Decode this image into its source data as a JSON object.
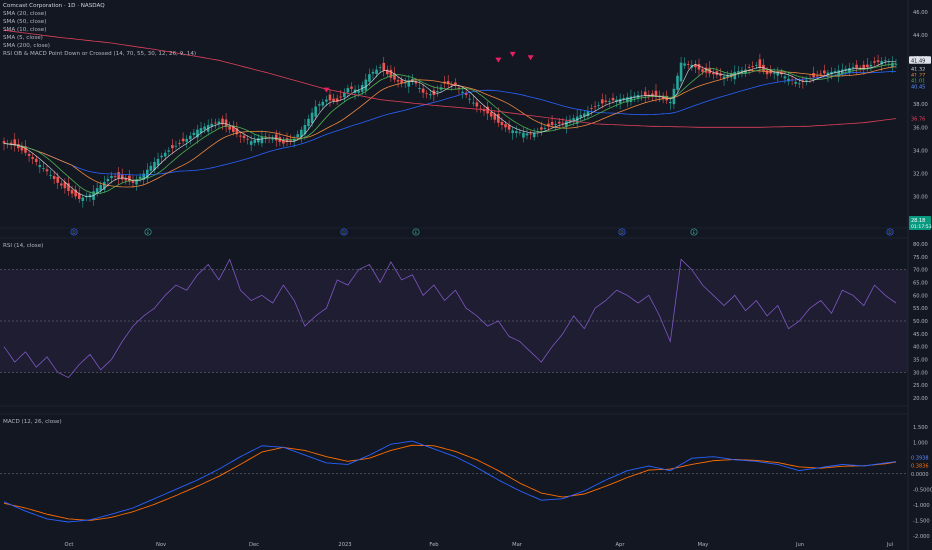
{
  "header": {
    "title": "Comcast Corporation · 1D · NASDAQ",
    "indicators": [
      "SMA (20, close)",
      "SMA (50, close)",
      "SMA (10, close)",
      "SMA (5, close)",
      "SMA (200, close)",
      "RSI OB & MACD Point Down or Crossed (14, 70, 55, 30, 12, 26, 9, 14)"
    ]
  },
  "rsi_pane": {
    "label": "RSI (14, close)"
  },
  "macd_pane": {
    "label": "MACD (12, 26, close)"
  },
  "colors": {
    "bg": "#131722",
    "up": "#26a69a",
    "down": "#ef5350",
    "sma20": "#f0883e",
    "sma50": "#2962ff",
    "sma10": "#4caf50",
    "sma5": "#e0e0e0",
    "sma200": "#e0405a",
    "rsi": "#7e57c2",
    "macd": "#2962ff",
    "signal": "#ff6d00",
    "marker": "#e91e63"
  },
  "chart_data": [
    {
      "type": "candlestick",
      "title": "Comcast Corporation · 1D · NASDAQ",
      "x_ticks": [
        "Oct",
        "Nov",
        "Dec",
        "2023",
        "Feb",
        "Mar",
        "Apr",
        "May",
        "Jun",
        "Jul"
      ],
      "y_ticks": [
        "46.00",
        "44.00",
        "42.00",
        "40.00",
        "38.00",
        "36.00",
        "34.00",
        "32.00",
        "30.00"
      ],
      "ylim": [
        28.5,
        46.5
      ],
      "price_labels": [
        {
          "text": "41.49",
          "kind": "last"
        },
        {
          "text": "41.32",
          "series": "SMA (5, close)"
        },
        {
          "text": "41.27",
          "series": "SMA (20, close)"
        },
        {
          "text": "41.01",
          "series": "SMA (10, close)"
        },
        {
          "text": "40.45",
          "series": "SMA (50, close)"
        },
        {
          "text": "36.76",
          "series": "SMA (200, close)"
        },
        {
          "text": "28.18",
          "kind": "info"
        },
        {
          "text": "01:17:53",
          "kind": "countdown"
        }
      ],
      "event_markers": [
        "D",
        "E",
        "D",
        "E",
        "D",
        "E",
        "D"
      ],
      "close_path": [
        [
          0,
          34.6
        ],
        [
          3,
          34.4
        ],
        [
          6,
          33.8
        ],
        [
          9,
          33.0
        ],
        [
          12,
          32.2
        ],
        [
          15,
          31.2
        ],
        [
          18,
          30.5
        ],
        [
          21,
          29.8
        ],
        [
          24,
          30.2
        ],
        [
          27,
          31.0
        ],
        [
          30,
          31.8
        ],
        [
          33,
          31.5
        ],
        [
          36,
          31.2
        ],
        [
          39,
          32.0
        ],
        [
          42,
          33.0
        ],
        [
          45,
          33.8
        ],
        [
          48,
          34.4
        ],
        [
          51,
          35.0
        ],
        [
          54,
          35.8
        ],
        [
          57,
          36.2
        ],
        [
          60,
          36.5
        ],
        [
          63,
          35.8
        ],
        [
          66,
          35.2
        ],
        [
          69,
          34.8
        ],
        [
          72,
          35.2
        ],
        [
          75,
          35.0
        ],
        [
          78,
          34.6
        ],
        [
          81,
          35.0
        ],
        [
          84,
          36.2
        ],
        [
          87,
          37.8
        ],
        [
          90,
          38.4
        ],
        [
          93,
          38.2
        ],
        [
          96,
          39.4
        ],
        [
          99,
          39.2
        ],
        [
          102,
          40.6
        ],
        [
          105,
          41.2
        ],
        [
          108,
          40.3
        ],
        [
          111,
          39.8
        ],
        [
          114,
          40.2
        ],
        [
          117,
          39.0
        ],
        [
          120,
          38.8
        ],
        [
          123,
          39.8
        ],
        [
          126,
          39.6
        ],
        [
          129,
          38.8
        ],
        [
          132,
          37.8
        ],
        [
          135,
          37.2
        ],
        [
          138,
          36.4
        ],
        [
          141,
          35.8
        ],
        [
          144,
          35.6
        ],
        [
          147,
          35.4
        ],
        [
          150,
          35.8
        ],
        [
          153,
          36.2
        ],
        [
          156,
          36.4
        ],
        [
          159,
          36.8
        ],
        [
          162,
          37.2
        ],
        [
          165,
          37.8
        ],
        [
          168,
          38.2
        ],
        [
          171,
          38.4
        ],
        [
          174,
          38.6
        ],
        [
          177,
          38.8
        ],
        [
          180,
          38.7
        ],
        [
          183,
          38.6
        ],
        [
          186,
          38.2
        ],
        [
          189,
          41.6
        ],
        [
          192,
          41.4
        ],
        [
          195,
          40.8
        ],
        [
          198,
          40.6
        ],
        [
          201,
          40.4
        ],
        [
          204,
          40.8
        ],
        [
          207,
          41.0
        ],
        [
          210,
          41.4
        ],
        [
          213,
          40.6
        ],
        [
          216,
          40.8
        ],
        [
          219,
          40.2
        ],
        [
          222,
          39.8
        ],
        [
          225,
          40.2
        ],
        [
          228,
          40.6
        ],
        [
          231,
          40.8
        ],
        [
          234,
          41.0
        ],
        [
          237,
          41.2
        ],
        [
          240,
          41.0
        ],
        [
          243,
          41.6
        ],
        [
          246,
          41.8
        ],
        [
          249,
          41.49
        ]
      ],
      "sma200_path": [
        [
          0,
          44.4
        ],
        [
          15,
          43.8
        ],
        [
          30,
          43.3
        ],
        [
          45,
          42.6
        ],
        [
          60,
          41.8
        ],
        [
          75,
          40.6
        ],
        [
          90,
          39.3
        ],
        [
          105,
          38.4
        ],
        [
          120,
          37.9
        ],
        [
          135,
          37.5
        ],
        [
          150,
          36.9
        ],
        [
          165,
          36.3
        ],
        [
          180,
          36.1
        ],
        [
          195,
          36.0
        ],
        [
          210,
          36.0
        ],
        [
          225,
          36.1
        ],
        [
          240,
          36.4
        ],
        [
          249,
          36.76
        ]
      ]
    },
    {
      "type": "line",
      "title": "RSI (14, close)",
      "y_ticks": [
        "80.00",
        "75.00",
        "70.00",
        "65.00",
        "60.00",
        "55.00",
        "50.00",
        "45.00",
        "40.00",
        "35.00",
        "30.00",
        "25.00",
        "20.00"
      ],
      "ylim": [
        20,
        80
      ],
      "band": [
        30,
        70
      ],
      "midline": 50,
      "series": [
        {
          "name": "RSI (14, close)",
          "values": [
            [
              0,
              40
            ],
            [
              3,
              34
            ],
            [
              6,
              38
            ],
            [
              9,
              32
            ],
            [
              12,
              36
            ],
            [
              15,
              30
            ],
            [
              18,
              28
            ],
            [
              21,
              33
            ],
            [
              24,
              37
            ],
            [
              27,
              31
            ],
            [
              30,
              35
            ],
            [
              33,
              42
            ],
            [
              36,
              48
            ],
            [
              39,
              52
            ],
            [
              42,
              55
            ],
            [
              45,
              60
            ],
            [
              48,
              64
            ],
            [
              51,
              62
            ],
            [
              54,
              68
            ],
            [
              57,
              72
            ],
            [
              60,
              66
            ],
            [
              63,
              74
            ],
            [
              66,
              62
            ],
            [
              69,
              58
            ],
            [
              72,
              60
            ],
            [
              75,
              57
            ],
            [
              78,
              64
            ],
            [
              81,
              58
            ],
            [
              84,
              48
            ],
            [
              87,
              52
            ],
            [
              90,
              55
            ],
            [
              93,
              66
            ],
            [
              96,
              64
            ],
            [
              99,
              70
            ],
            [
              102,
              72
            ],
            [
              105,
              65
            ],
            [
              108,
              73
            ],
            [
              111,
              66
            ],
            [
              114,
              68
            ],
            [
              117,
              60
            ],
            [
              120,
              64
            ],
            [
              123,
              58
            ],
            [
              126,
              62
            ],
            [
              129,
              55
            ],
            [
              132,
              52
            ],
            [
              135,
              48
            ],
            [
              138,
              50
            ],
            [
              141,
              44
            ],
            [
              144,
              42
            ],
            [
              147,
              38
            ],
            [
              150,
              34
            ],
            [
              153,
              40
            ],
            [
              156,
              45
            ],
            [
              159,
              52
            ],
            [
              162,
              47
            ],
            [
              165,
              55
            ],
            [
              168,
              58
            ],
            [
              171,
              62
            ],
            [
              174,
              60
            ],
            [
              177,
              57
            ],
            [
              180,
              60
            ],
            [
              183,
              52
            ],
            [
              186,
              42
            ],
            [
              189,
              74
            ],
            [
              192,
              70
            ],
            [
              195,
              64
            ],
            [
              198,
              60
            ],
            [
              201,
              56
            ],
            [
              204,
              60
            ],
            [
              207,
              54
            ],
            [
              210,
              58
            ],
            [
              213,
              52
            ],
            [
              216,
              56
            ],
            [
              219,
              47
            ],
            [
              222,
              50
            ],
            [
              225,
              55
            ],
            [
              228,
              58
            ],
            [
              231,
              53
            ],
            [
              234,
              62
            ],
            [
              237,
              60
            ],
            [
              240,
              56
            ],
            [
              243,
              64
            ],
            [
              246,
              60
            ],
            [
              249,
              57
            ]
          ]
        }
      ]
    },
    {
      "type": "line",
      "title": "MACD (12, 26, close)",
      "y_ticks": [
        "1.500",
        "1.000",
        "0.5000",
        "0.0000",
        "-0.5000",
        "-1.000",
        "-1.500",
        "-2.000"
      ],
      "ylim": [
        -2.0,
        1.6
      ],
      "value_labels": [
        "0.3938",
        "0.3836",
        "0.0000"
      ],
      "series": [
        {
          "name": "MACD",
          "values": [
            [
              0,
              -0.9
            ],
            [
              6,
              -1.2
            ],
            [
              12,
              -1.45
            ],
            [
              18,
              -1.55
            ],
            [
              24,
              -1.48
            ],
            [
              30,
              -1.3
            ],
            [
              36,
              -1.1
            ],
            [
              42,
              -0.8
            ],
            [
              48,
              -0.5
            ],
            [
              54,
              -0.2
            ],
            [
              60,
              0.15
            ],
            [
              66,
              0.55
            ],
            [
              72,
              0.9
            ],
            [
              78,
              0.85
            ],
            [
              84,
              0.6
            ],
            [
              90,
              0.35
            ],
            [
              96,
              0.3
            ],
            [
              102,
              0.6
            ],
            [
              108,
              0.95
            ],
            [
              114,
              1.05
            ],
            [
              120,
              0.8
            ],
            [
              126,
              0.55
            ],
            [
              132,
              0.2
            ],
            [
              138,
              -0.2
            ],
            [
              144,
              -0.55
            ],
            [
              150,
              -0.85
            ],
            [
              156,
              -0.8
            ],
            [
              162,
              -0.55
            ],
            [
              168,
              -0.2
            ],
            [
              174,
              0.1
            ],
            [
              180,
              0.25
            ],
            [
              186,
              0.1
            ],
            [
              192,
              0.5
            ],
            [
              198,
              0.55
            ],
            [
              204,
              0.45
            ],
            [
              210,
              0.4
            ],
            [
              216,
              0.3
            ],
            [
              222,
              0.1
            ],
            [
              228,
              0.2
            ],
            [
              234,
              0.3
            ],
            [
              240,
              0.25
            ],
            [
              246,
              0.35
            ],
            [
              249,
              0.39
            ]
          ]
        },
        {
          "name": "Signal",
          "values": [
            [
              0,
              -0.95
            ],
            [
              6,
              -1.1
            ],
            [
              12,
              -1.3
            ],
            [
              18,
              -1.45
            ],
            [
              24,
              -1.5
            ],
            [
              30,
              -1.4
            ],
            [
              36,
              -1.22
            ],
            [
              42,
              -0.98
            ],
            [
              48,
              -0.7
            ],
            [
              54,
              -0.4
            ],
            [
              60,
              -0.08
            ],
            [
              66,
              0.3
            ],
            [
              72,
              0.7
            ],
            [
              78,
              0.85
            ],
            [
              84,
              0.75
            ],
            [
              90,
              0.55
            ],
            [
              96,
              0.4
            ],
            [
              102,
              0.5
            ],
            [
              108,
              0.75
            ],
            [
              114,
              0.92
            ],
            [
              120,
              0.9
            ],
            [
              126,
              0.72
            ],
            [
              132,
              0.45
            ],
            [
              138,
              0.1
            ],
            [
              144,
              -0.3
            ],
            [
              150,
              -0.62
            ],
            [
              156,
              -0.75
            ],
            [
              162,
              -0.65
            ],
            [
              168,
              -0.4
            ],
            [
              174,
              -0.12
            ],
            [
              180,
              0.12
            ],
            [
              186,
              0.15
            ],
            [
              192,
              0.3
            ],
            [
              198,
              0.42
            ],
            [
              204,
              0.46
            ],
            [
              210,
              0.43
            ],
            [
              216,
              0.36
            ],
            [
              222,
              0.22
            ],
            [
              228,
              0.18
            ],
            [
              234,
              0.24
            ],
            [
              240,
              0.26
            ],
            [
              246,
              0.32
            ],
            [
              249,
              0.38
            ]
          ]
        }
      ]
    }
  ]
}
